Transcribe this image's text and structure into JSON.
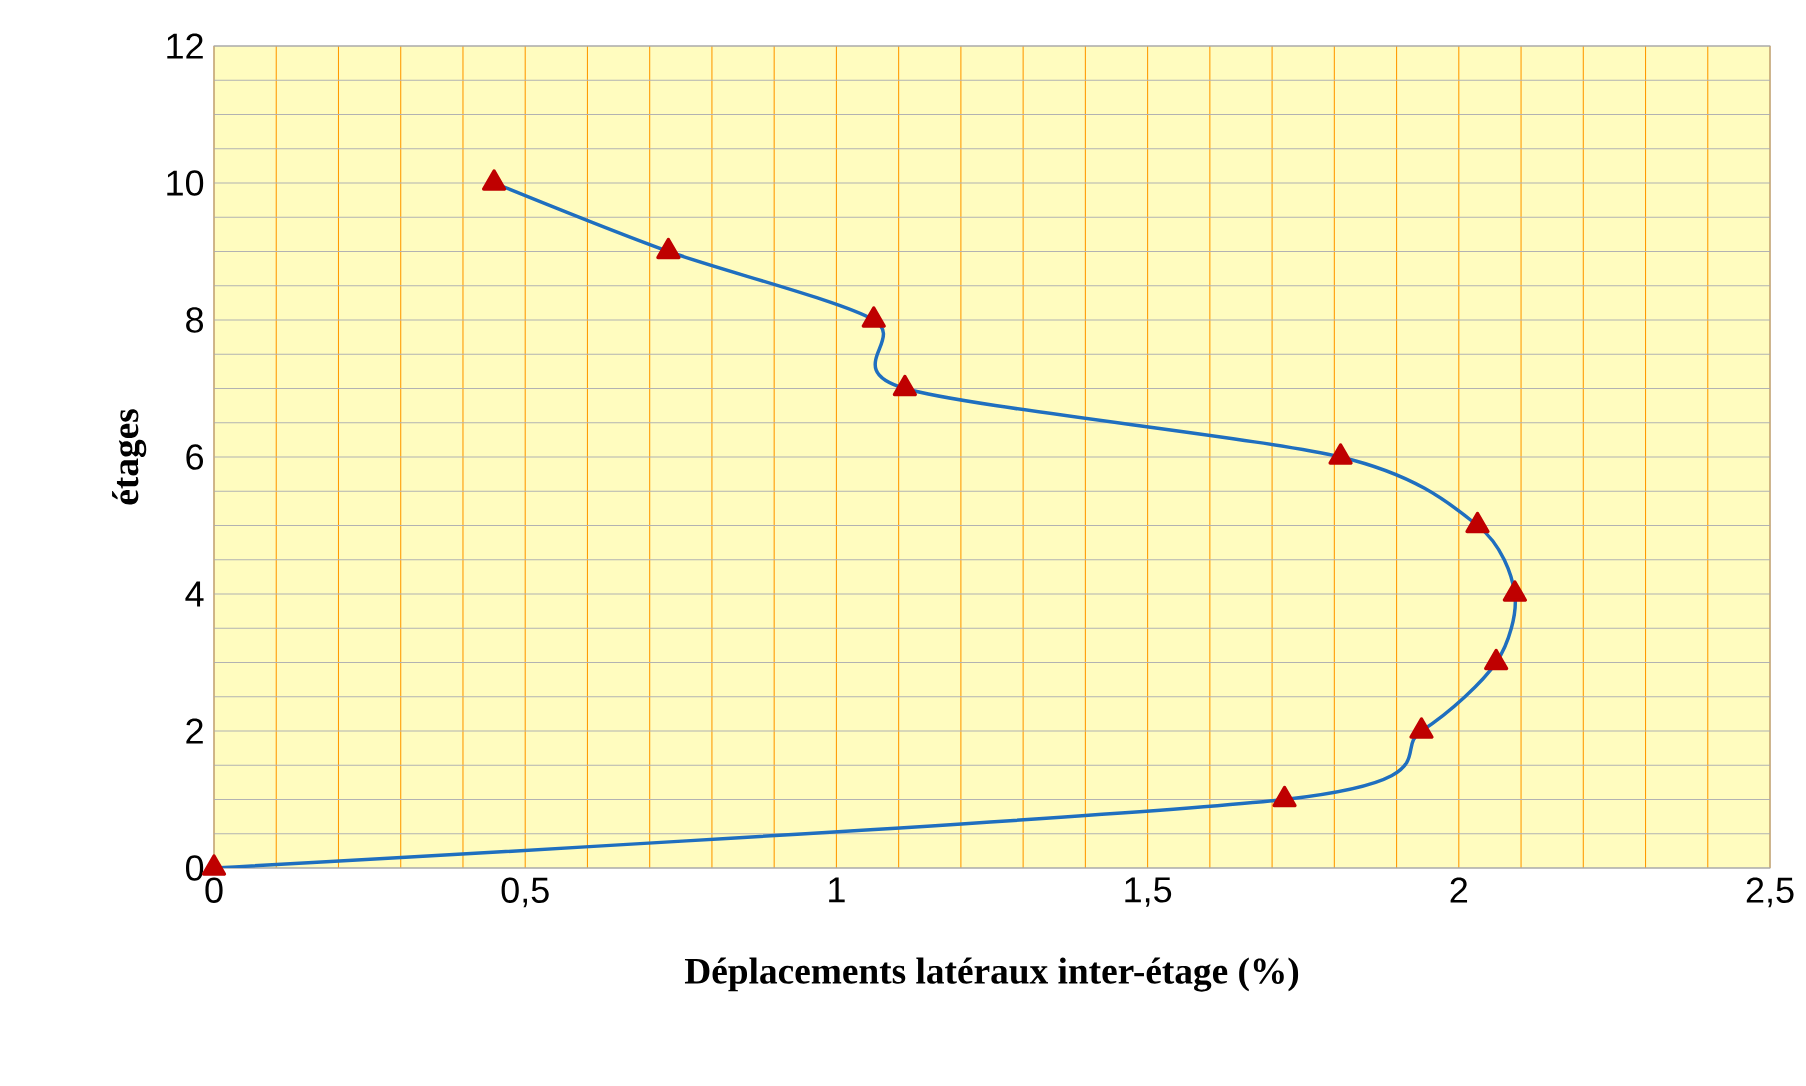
{
  "chart_data": {
    "type": "line",
    "xlabel": "Déplacements latéraux inter-étage (%)",
    "ylabel": "étages",
    "series": [
      {
        "color": "#1f6fbf",
        "x": [
          0,
          1.72,
          1.94,
          2.06,
          2.09,
          2.03,
          1.81,
          1.11,
          1.06,
          0.73,
          0.45
        ],
        "values": [
          0,
          1,
          2,
          3,
          4,
          5,
          6,
          7,
          8,
          9,
          10
        ]
      }
    ],
    "xlim": [
      0,
      2.5
    ],
    "ylim": [
      0,
      12
    ],
    "xticks": [
      0,
      {
        "value": 0.5,
        "label": "0,5"
      },
      1,
      {
        "value": 1.5,
        "label": "1,5"
      },
      2,
      {
        "value": 2.5,
        "label": "2,5"
      }
    ],
    "yticks": [
      0,
      2,
      4,
      6,
      8,
      10,
      12
    ],
    "grid": true,
    "marker": "triangle",
    "line_style": "solid"
  }
}
